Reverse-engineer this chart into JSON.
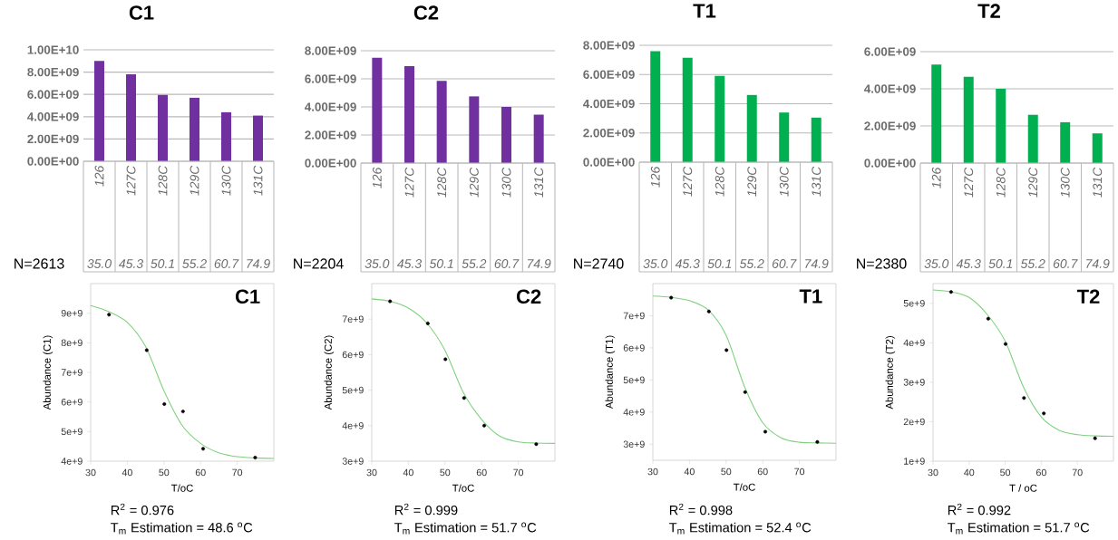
{
  "chart_data": [
    {
      "type": "bar",
      "title": "C1",
      "categories": [
        "126",
        "127C",
        "128C",
        "129C",
        "130C",
        "131C"
      ],
      "values": [
        9000000000.0,
        7800000000.0,
        5950000000.0,
        5700000000.0,
        4400000000.0,
        4100000000.0
      ],
      "color": "#7030a0",
      "ylim": [
        0,
        10000000000.0
      ],
      "yticks": [
        {
          "value": 0,
          "label": "0.00E+00"
        },
        {
          "value": 2000000000.0,
          "label": "2.00E+09"
        },
        {
          "value": 4000000000.0,
          "label": "4.00E+09"
        },
        {
          "value": 6000000000.0,
          "label": "6.00E+09"
        },
        {
          "value": 8000000000.0,
          "label": "8.00E+09"
        },
        {
          "value": 10000000000.0,
          "label": "1.00E+10"
        }
      ],
      "grid": "y",
      "annotations": [
        "N=2613",
        "35.0",
        "45.3",
        "50.1",
        "55.2",
        "60.7",
        "74.9"
      ]
    },
    {
      "type": "bar",
      "title": "C2",
      "categories": [
        "126",
        "127C",
        "128C",
        "129C",
        "130C",
        "131C"
      ],
      "values": [
        7500000000.0,
        6900000000.0,
        5850000000.0,
        4750000000.0,
        4000000000.0,
        3450000000.0
      ],
      "color": "#7030a0",
      "ylim": [
        0,
        8000000000.0
      ],
      "yticks": [
        {
          "value": 0,
          "label": "0.00E+00"
        },
        {
          "value": 2000000000.0,
          "label": "2.00E+09"
        },
        {
          "value": 4000000000.0,
          "label": "4.00E+09"
        },
        {
          "value": 6000000000.0,
          "label": "6.00E+09"
        },
        {
          "value": 8000000000.0,
          "label": "8.00E+09"
        }
      ],
      "grid": "y",
      "annotations": [
        "N=2204",
        "35.0",
        "45.3",
        "50.1",
        "55.2",
        "60.7",
        "74.9"
      ]
    },
    {
      "type": "bar",
      "title": "T1",
      "categories": [
        "126",
        "127C",
        "128C",
        "129C",
        "130C",
        "131C"
      ],
      "values": [
        7600000000.0,
        7150000000.0,
        5900000000.0,
        4600000000.0,
        3400000000.0,
        3050000000.0
      ],
      "color": "#00b050",
      "ylim": [
        0,
        8000000000.0
      ],
      "yticks": [
        {
          "value": 0,
          "label": "0.00E+00"
        },
        {
          "value": 2000000000.0,
          "label": "2.00E+09"
        },
        {
          "value": 4000000000.0,
          "label": "4.00E+09"
        },
        {
          "value": 6000000000.0,
          "label": "6.00E+09"
        },
        {
          "value": 8000000000.0,
          "label": "8.00E+09"
        }
      ],
      "grid": "y",
      "annotations": [
        "N=2740",
        "35.0",
        "45.3",
        "50.1",
        "55.2",
        "60.7",
        "74.9"
      ]
    },
    {
      "type": "bar",
      "title": "T2",
      "categories": [
        "126",
        "127C",
        "128C",
        "129C",
        "130C",
        "131C"
      ],
      "values": [
        5300000000.0,
        4650000000.0,
        4000000000.0,
        2600000000.0,
        2200000000.0,
        1600000000.0
      ],
      "color": "#00b050",
      "ylim": [
        0,
        6000000000.0
      ],
      "yticks": [
        {
          "value": 0,
          "label": "0.00E+00"
        },
        {
          "value": 2000000000.0,
          "label": "2.00E+09"
        },
        {
          "value": 4000000000.0,
          "label": "4.00E+09"
        },
        {
          "value": 6000000000.0,
          "label": "6.00E+09"
        }
      ],
      "grid": "y",
      "annotations": [
        "N=2380",
        "35.0",
        "45.3",
        "50.1",
        "55.2",
        "60.7",
        "74.9"
      ]
    },
    {
      "type": "scatter",
      "title": "C1",
      "xlabel": "T/oC",
      "ylabel": "Abundance (C1)",
      "marker": "circle",
      "xlim": [
        30,
        80
      ],
      "xticks": [
        30,
        40,
        50,
        60,
        70
      ],
      "ylim": [
        4000000000.0,
        10000000000.0
      ],
      "yticks": [
        {
          "value": 4000000000.0,
          "label": "4e+9"
        },
        {
          "value": 5000000000.0,
          "label": "5e+9"
        },
        {
          "value": 6000000000.0,
          "label": "6e+9"
        },
        {
          "value": 7000000000.0,
          "label": "7e+9"
        },
        {
          "value": 8000000000.0,
          "label": "8e+9"
        },
        {
          "value": 9000000000.0,
          "label": "9e+9"
        }
      ],
      "series": [
        {
          "type": "scatter",
          "color": "#000000",
          "x": [
            35.0,
            45.3,
            50.1,
            55.2,
            60.7,
            74.9
          ],
          "values": [
            8950000000.0,
            7750000000.0,
            5930000000.0,
            5680000000.0,
            4420000000.0,
            4120000000.0
          ]
        },
        {
          "type": "line",
          "color": "#7fd07f",
          "marker": "none",
          "x": [
            30,
            35,
            40,
            45,
            50,
            55,
            60,
            65,
            70,
            75,
            80
          ],
          "values": [
            9260000000.0,
            9050000000.0,
            8690000000.0,
            7870000000.0,
            6380000000.0,
            5200000000.0,
            4600000000.0,
            4280000000.0,
            4150000000.0,
            4110000000.0,
            4090000000.0
          ]
        }
      ],
      "annotations": [
        "R$^{2}$  = 0.976",
        "T$_{m}$ Estimation  =  48.6 $^{o}$C"
      ]
    },
    {
      "type": "scatter",
      "title": "C2",
      "xlabel": "T/oC",
      "ylabel": "Abundance (C2)",
      "marker": "circle",
      "xlim": [
        30,
        80
      ],
      "xticks": [
        30,
        40,
        50,
        60,
        70
      ],
      "ylim": [
        3000000000.0,
        8000000000.0
      ],
      "yticks": [
        {
          "value": 3000000000.0,
          "label": "3e+9"
        },
        {
          "value": 4000000000.0,
          "label": "4e+9"
        },
        {
          "value": 5000000000.0,
          "label": "5e+9"
        },
        {
          "value": 6000000000.0,
          "label": "6e+9"
        },
        {
          "value": 7000000000.0,
          "label": "7e+9"
        }
      ],
      "series": [
        {
          "type": "scatter",
          "color": "#000000",
          "x": [
            35.0,
            45.3,
            50.1,
            55.2,
            60.7,
            74.9
          ],
          "values": [
            7500000000.0,
            6880000000.0,
            5870000000.0,
            4780000000.0,
            4000000000.0,
            3480000000.0
          ]
        },
        {
          "type": "line",
          "color": "#7fd07f",
          "marker": "none",
          "x": [
            30,
            35,
            40,
            45,
            50,
            55,
            60,
            65,
            70,
            75,
            80
          ],
          "values": [
            7570000000.0,
            7500000000.0,
            7310000000.0,
            6890000000.0,
            6120000000.0,
            4930000000.0,
            4170000000.0,
            3700000000.0,
            3540000000.0,
            3510000000.0,
            3500000000.0
          ]
        }
      ],
      "annotations": [
        "R$^{2}$  = 0.999",
        "T$_{m}$ Estimation  =  51.7 $^{o}$C"
      ]
    },
    {
      "type": "scatter",
      "title": "T1",
      "xlabel": "T/oC",
      "ylabel": "Abundance (T1)",
      "marker": "circle",
      "xlim": [
        30,
        80
      ],
      "xticks": [
        30,
        40,
        50,
        60,
        70
      ],
      "ylim": [
        2500000000.0,
        8000000000.0
      ],
      "yticks": [
        {
          "value": 3000000000.0,
          "label": "3e+9"
        },
        {
          "value": 4000000000.0,
          "label": "4e+9"
        },
        {
          "value": 5000000000.0,
          "label": "5e+9"
        },
        {
          "value": 6000000000.0,
          "label": "6e+9"
        },
        {
          "value": 7000000000.0,
          "label": "7e+9"
        }
      ],
      "series": [
        {
          "type": "scatter",
          "color": "#000000",
          "x": [
            35.0,
            45.3,
            50.1,
            55.2,
            60.7,
            74.9
          ],
          "values": [
            7560000000.0,
            7130000000.0,
            5930000000.0,
            4620000000.0,
            3390000000.0,
            3070000000.0
          ]
        },
        {
          "type": "line",
          "color": "#7fd07f",
          "marker": "none",
          "x": [
            30,
            35,
            40,
            45,
            50,
            55,
            60,
            65,
            70,
            75,
            80
          ],
          "values": [
            7610000000.0,
            7570000000.0,
            7470000000.0,
            7190000000.0,
            6390000000.0,
            4800000000.0,
            3670000000.0,
            3200000000.0,
            3060000000.0,
            3040000000.0,
            3030000000.0
          ]
        }
      ],
      "annotations": [
        "R$^{2}$  = 0.998",
        "T$_{m}$ Estimation  =  52.4 $^{o}$C"
      ]
    },
    {
      "type": "scatter",
      "title": "T2",
      "xlabel": "T / oC",
      "ylabel": "Abundance (T2)",
      "marker": "circle",
      "xlim": [
        30,
        80
      ],
      "xticks": [
        30,
        40,
        50,
        60,
        70
      ],
      "ylim": [
        1000000000.0,
        5500000000.0
      ],
      "yticks": [
        {
          "value": 1000000000.0,
          "label": "1e+9"
        },
        {
          "value": 2000000000.0,
          "label": "2e+9"
        },
        {
          "value": 3000000000.0,
          "label": "3e+9"
        },
        {
          "value": 4000000000.0,
          "label": "4e+9"
        },
        {
          "value": 5000000000.0,
          "label": "5e+9"
        }
      ],
      "series": [
        {
          "type": "scatter",
          "color": "#000000",
          "x": [
            35.0,
            45.3,
            50.1,
            55.2,
            60.7,
            74.9
          ],
          "values": [
            5290000000.0,
            4610000000.0,
            3970000000.0,
            2600000000.0,
            2210000000.0,
            1580000000.0
          ]
        },
        {
          "type": "line",
          "color": "#7fd07f",
          "marker": "none",
          "x": [
            30,
            35,
            40,
            45,
            50,
            55,
            60,
            65,
            70,
            75,
            80
          ],
          "values": [
            5340000000.0,
            5290000000.0,
            5150000000.0,
            4720000000.0,
            4040000000.0,
            2890000000.0,
            2120000000.0,
            1780000000.0,
            1670000000.0,
            1640000000.0,
            1630000000.0
          ]
        }
      ],
      "annotations": [
        "R$^{2}$  = 0.992",
        "T$_{m}$ Estimation  =  51.7 $^{o}$C"
      ]
    }
  ]
}
